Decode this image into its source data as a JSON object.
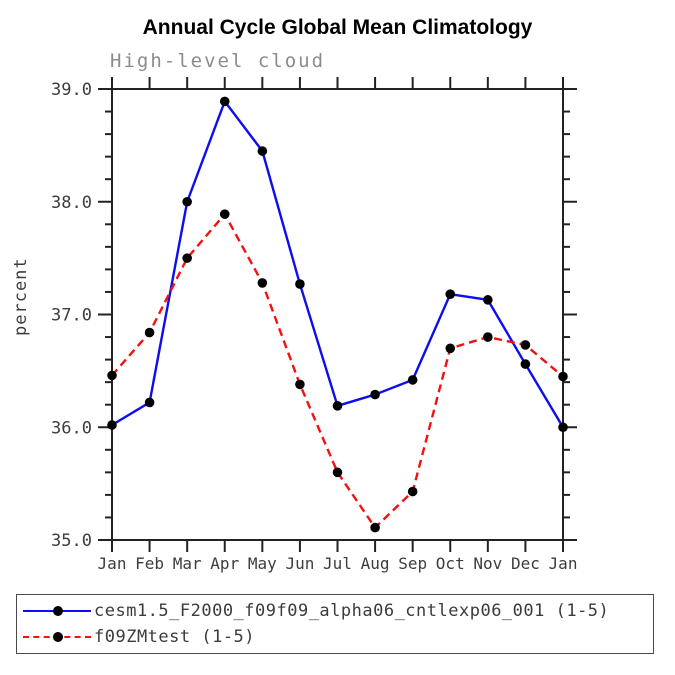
{
  "title": "Annual Cycle Global Mean Climatology",
  "subtitle": "High-level cloud",
  "ylabel": "percent",
  "chart_data": {
    "type": "line",
    "categories": [
      "Jan",
      "Feb",
      "Mar",
      "Apr",
      "May",
      "Jun",
      "Jul",
      "Aug",
      "Sep",
      "Oct",
      "Nov",
      "Dec",
      "Jan"
    ],
    "series": [
      {
        "name": "cesm1.5_F2000_f09f09_alpha06_cntlexp06_001 (1-5)",
        "color": "#0d0df0",
        "line_style": "solid",
        "marker": "black-dot",
        "values": [
          36.02,
          36.22,
          38.0,
          38.89,
          38.45,
          37.27,
          36.19,
          36.29,
          36.42,
          37.18,
          37.13,
          36.56,
          36.0
        ]
      },
      {
        "name": "f09ZMtest (1-5)",
        "color": "#f50f0f",
        "line_style": "dashed",
        "marker": "black-dot",
        "values": [
          36.46,
          36.84,
          37.5,
          37.89,
          37.28,
          36.38,
          35.6,
          35.11,
          35.43,
          36.7,
          36.8,
          36.73,
          36.45
        ]
      }
    ],
    "ylim": [
      35.0,
      39.0
    ],
    "yticks_major": [
      35.0,
      36.0,
      37.0,
      38.0,
      39.0
    ],
    "ytick_labels": [
      "35.0",
      "36.0",
      "37.0",
      "38.0",
      "39.0"
    ],
    "y_minor_tick_interval": 0.2,
    "xlabel": "",
    "grid": false,
    "legend_position": "bottom",
    "axis_color": "#222222",
    "marker_color": "#000000",
    "tick_label_color": "#3d3d3d"
  }
}
